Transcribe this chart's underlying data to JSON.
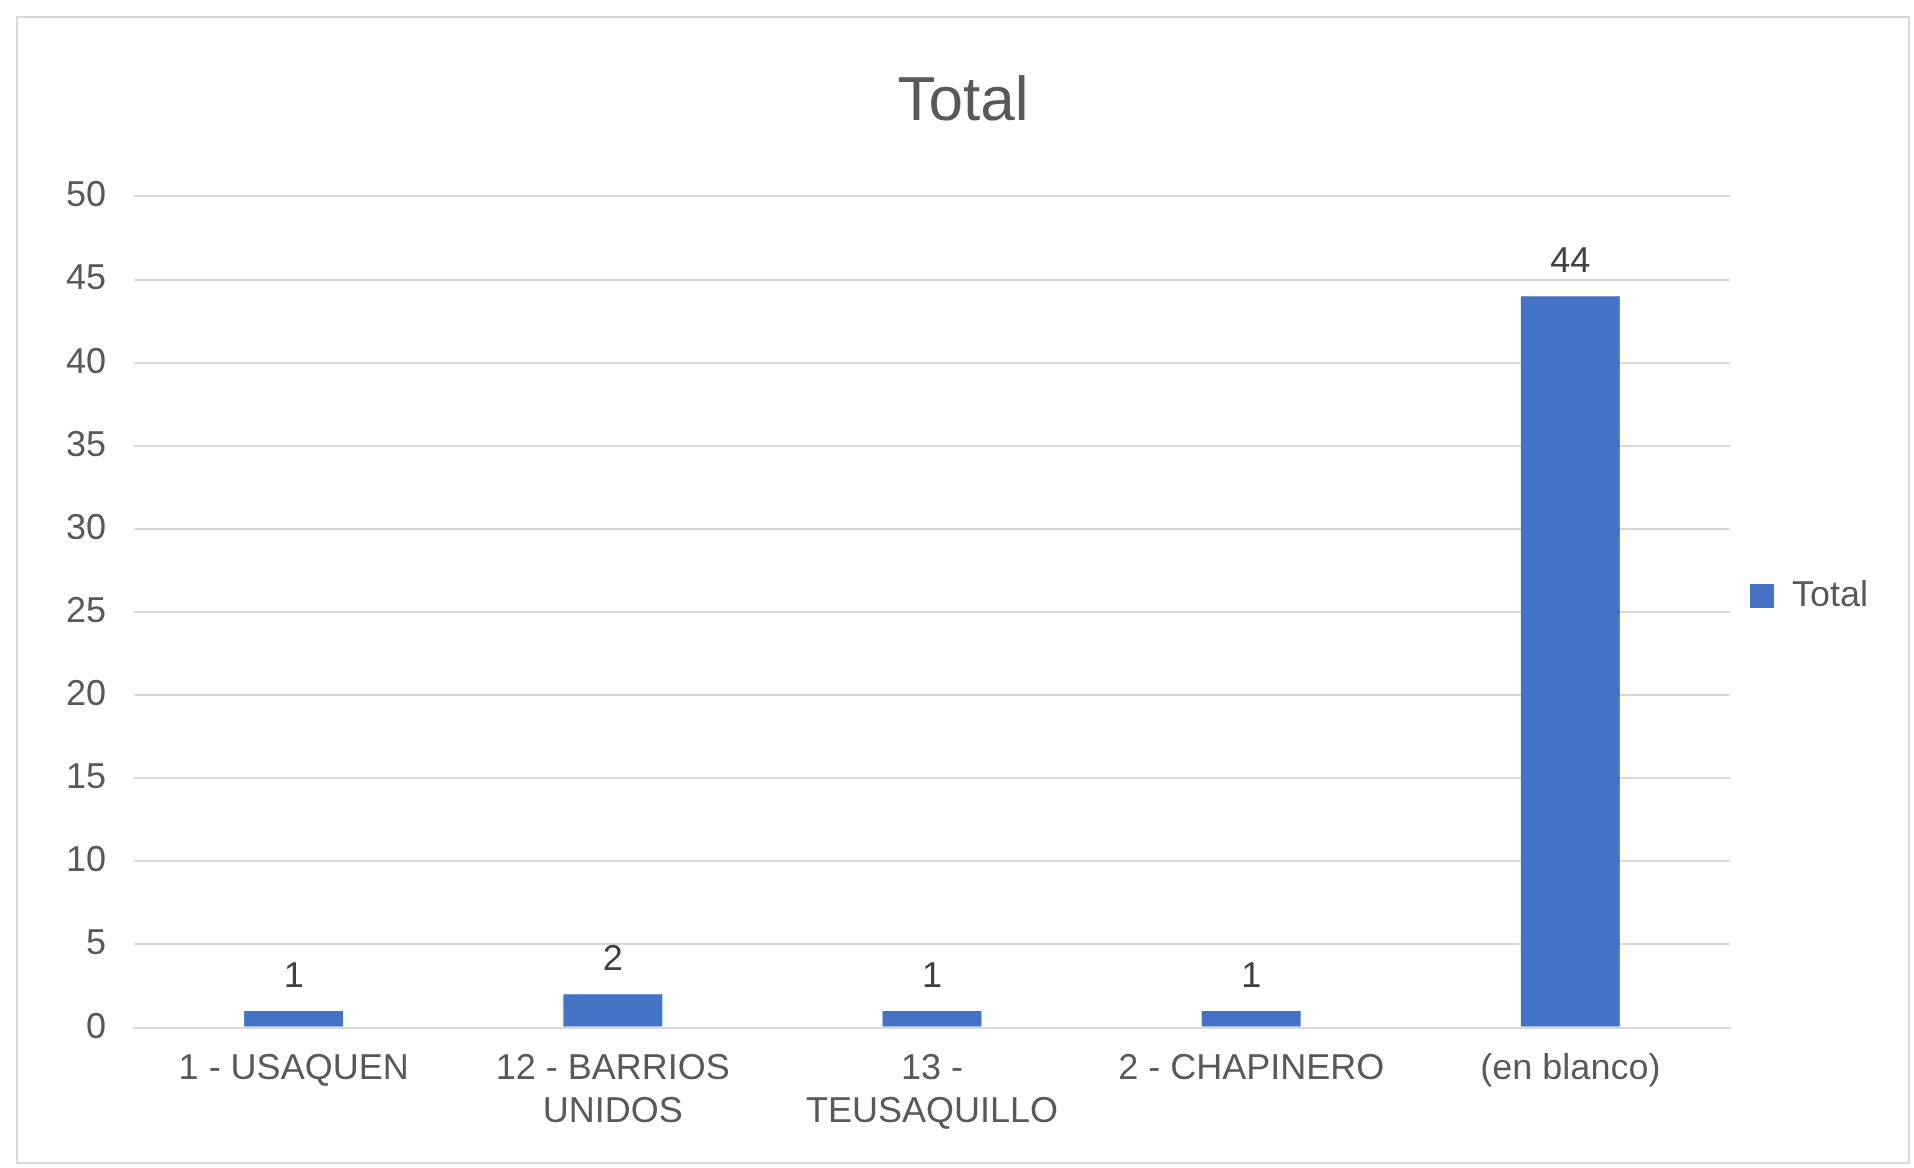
{
  "chart_data": {
    "type": "bar",
    "title": "Total",
    "categories": [
      "1 - USAQUEN",
      "12 - BARRIOS UNIDOS",
      "13 - TEUSAQUILLO",
      "2 - CHAPINERO",
      "(en blanco)"
    ],
    "series": [
      {
        "name": "Total",
        "color": "#4472c4",
        "values": [
          1,
          2,
          1,
          1,
          44
        ]
      }
    ],
    "ylim": [
      0,
      50
    ],
    "yticks": [
      0,
      5,
      10,
      15,
      20,
      25,
      30,
      35,
      40,
      45,
      50
    ],
    "grid": "y",
    "legend": "right",
    "data_labels": true
  }
}
